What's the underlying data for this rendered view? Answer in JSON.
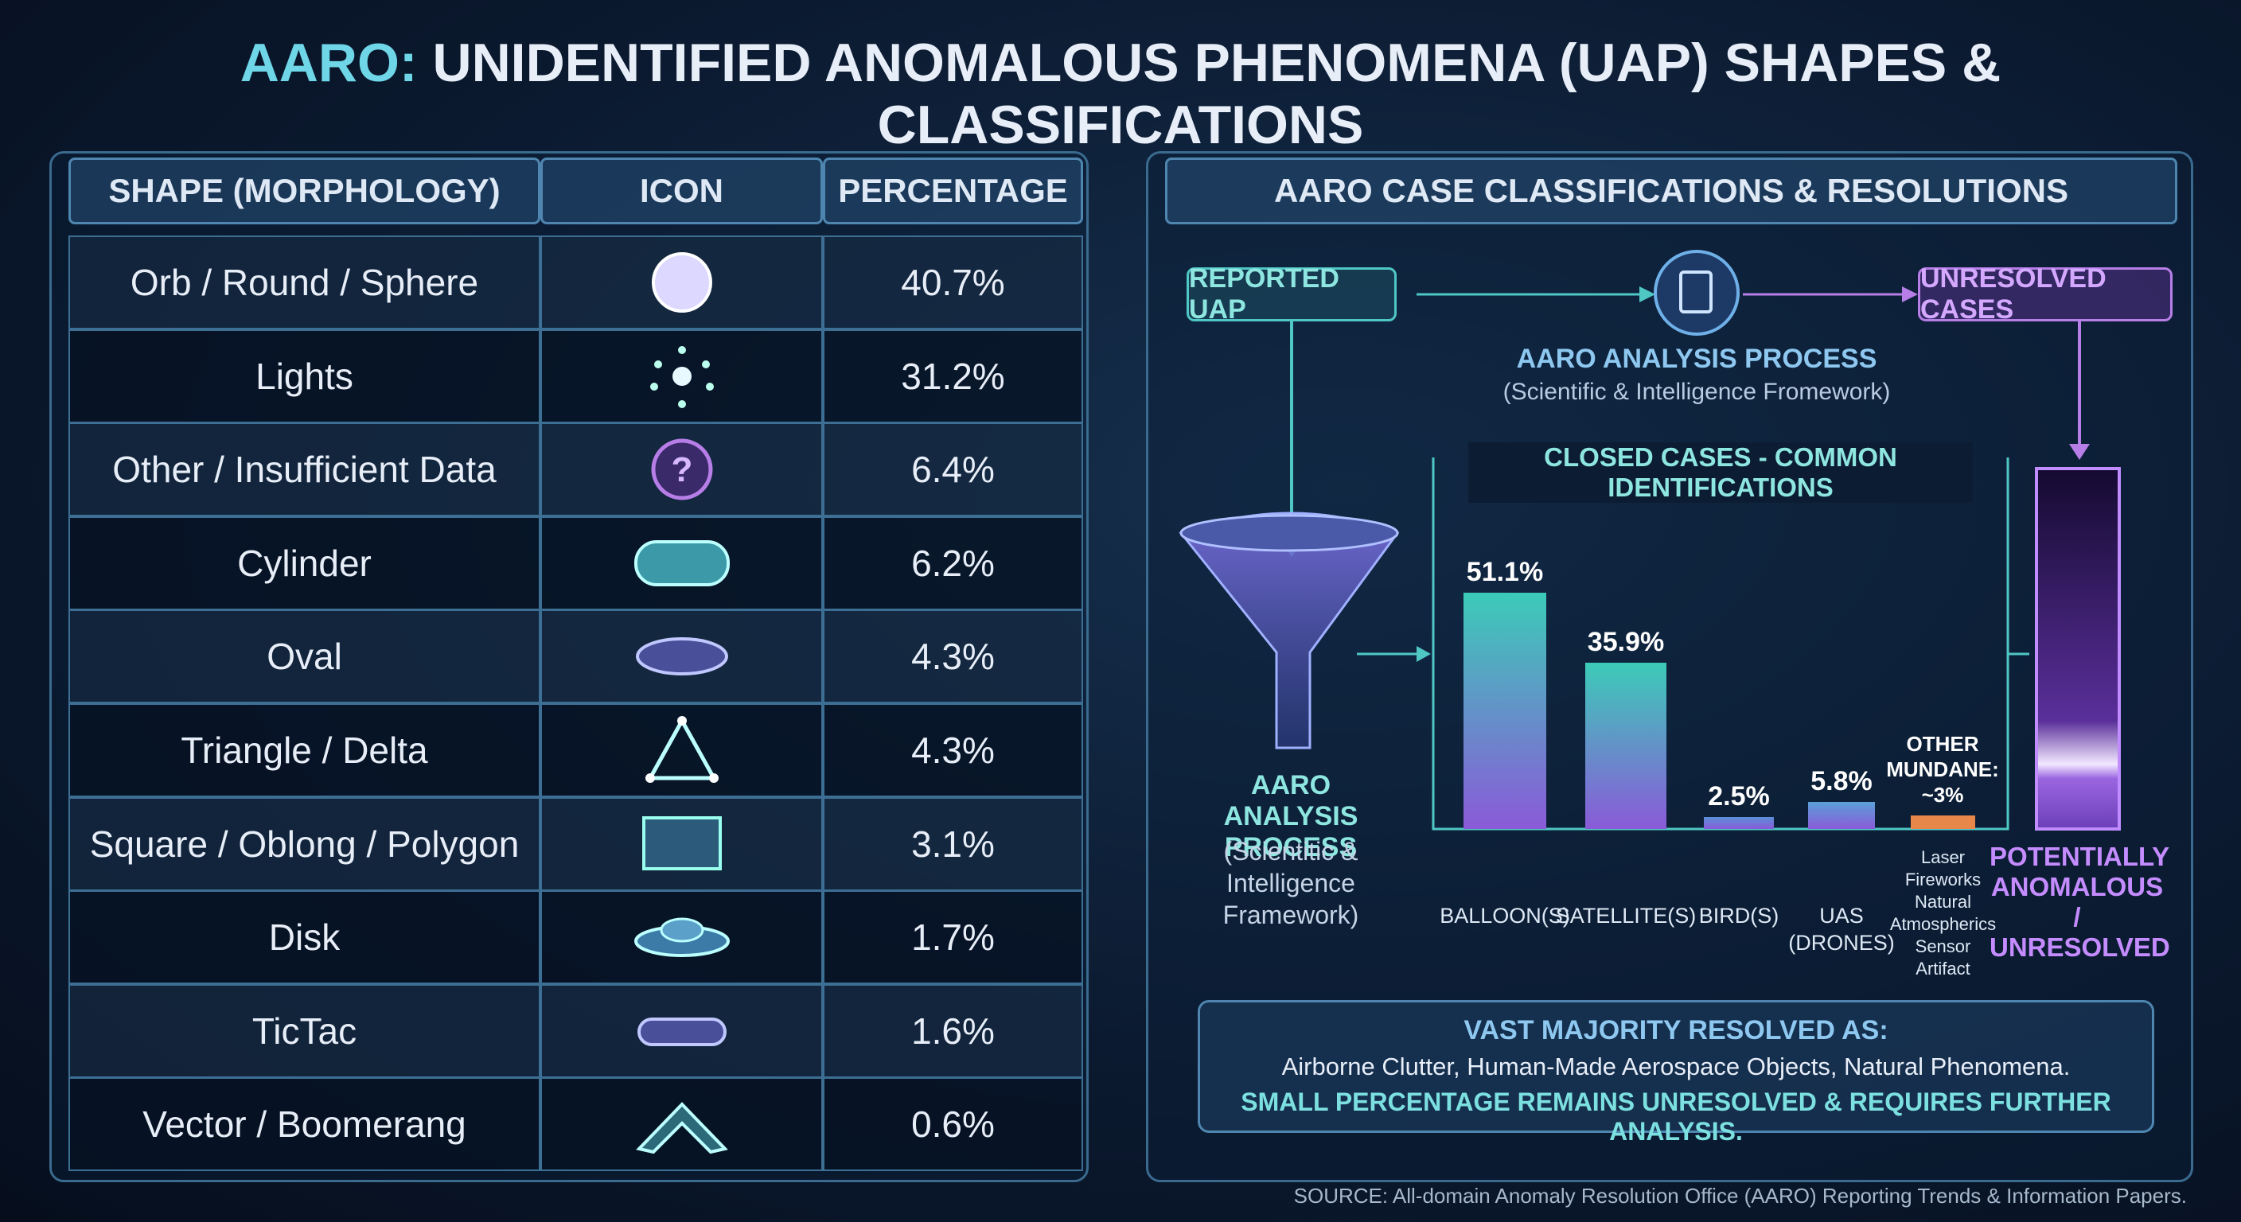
{
  "header": {
    "title_prefix": "AARO:",
    "title": "UNIDENTIFIED ANOMALOUS PHENOMENA (UAP) SHAPES & CLASSIFICATIONS"
  },
  "table": {
    "columns": [
      "SHAPE (MORPHOLOGY)",
      "ICON",
      "PERCENTAGE"
    ],
    "rows": [
      [
        "Orb / Round / Sphere",
        "40.7%"
      ],
      [
        "Lights",
        "31.2%"
      ],
      [
        "Other / Insufficient Data",
        "6.4%"
      ],
      [
        "Cylinder",
        "6.2%"
      ],
      [
        "Oval",
        "4.3%"
      ],
      [
        "Triangle / Delta",
        "4.3%"
      ],
      [
        "Square / Oblong / Polygon",
        "3.1%"
      ],
      [
        "Disk",
        "1.7%"
      ],
      [
        "TicTac",
        "1.6%"
      ],
      [
        "Vector / Boomerang",
        "0.6%"
      ]
    ]
  },
  "flow": {
    "title": "AARO CASE CLASSIFICATIONS & RESOLUTIONS",
    "reported": "REPORTED UAP",
    "process_title": "AARO ANALYSIS PROCESS",
    "process_subtitle": "(Scientific & Intelligence Fromework)",
    "unresolved": "UNRESOLVED CASES",
    "funnel_title": "AARO ANALYSIS PROCESS",
    "funnel_subtitle": "(Scientitic & Intelligence Framework)",
    "potential": "POTENTIALLY ANOMALOUS / UNRESOLVED"
  },
  "chart_data": {
    "type": "bar",
    "title": "CLOSED CASES - COMMON IDENTIFICATIONS",
    "categories": [
      "BALLOON(S)",
      "SATELLITE(S)",
      "BIRD(S)",
      "UAS (DRONES)",
      "Laser Fireworks Natural Atmospherics Sensor Artifact"
    ],
    "values": [
      51.1,
      35.9,
      2.5,
      5.8,
      3
    ],
    "value_labels": [
      "51.1%",
      "35.9%",
      "2.5%",
      "5.8%",
      "OTHER MUNDANE: ~3%"
    ],
    "colors": [
      "#3ccbb8",
      "#3ccbb8",
      "#5a8fd8",
      "#5aa0d8",
      "#e8874a"
    ]
  },
  "summary": {
    "heading": "VAST MAJORITY RESOLVED AS:",
    "line1": "Airborne Clutter, Human-Made Aerospace Objects, Natural Phenomena.",
    "line2": "SMALL PERCENTAGE REMAINS UNRESOLVED & REQUIRES FURTHER ANALYSIS."
  },
  "source": "SOURCE: All-domain Anomaly Resolution Office (AARO) Reporting Trends & Information Papers."
}
